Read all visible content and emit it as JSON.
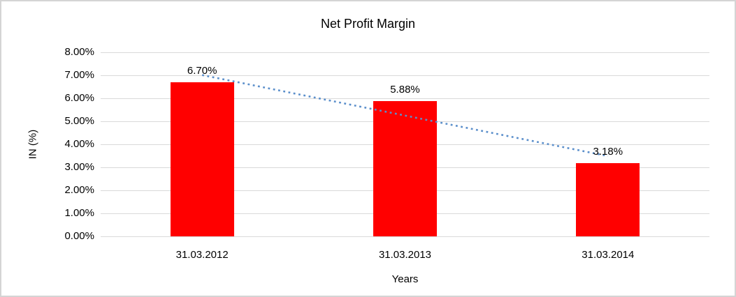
{
  "chart_data": {
    "type": "bar",
    "title": "Net Profit Margin",
    "xlabel": "Years",
    "ylabel": "IN (%)",
    "categories": [
      "31.03.2012",
      "31.03.2013",
      "31.03.2014"
    ],
    "values": [
      6.7,
      5.88,
      3.18
    ],
    "data_labels": [
      "6.70%",
      "5.88%",
      "3.18%"
    ],
    "ylim": [
      0,
      8
    ],
    "yticks": [
      0,
      1,
      2,
      3,
      4,
      5,
      6,
      7,
      8
    ],
    "ytick_labels": [
      "0.00%",
      "1.00%",
      "2.00%",
      "3.00%",
      "4.00%",
      "5.00%",
      "6.00%",
      "7.00%",
      "8.00%"
    ],
    "grid": "horizontal",
    "legend_position": "none",
    "bar_color": "#FF0000",
    "gridline_color": "#D9D9D9",
    "trendline": {
      "type": "linear",
      "style": "dotted",
      "color": "#5B8FCB",
      "start": {
        "category_index": 0,
        "value": 7.01
      },
      "end": {
        "category_index": 2,
        "value": 3.49
      }
    }
  }
}
